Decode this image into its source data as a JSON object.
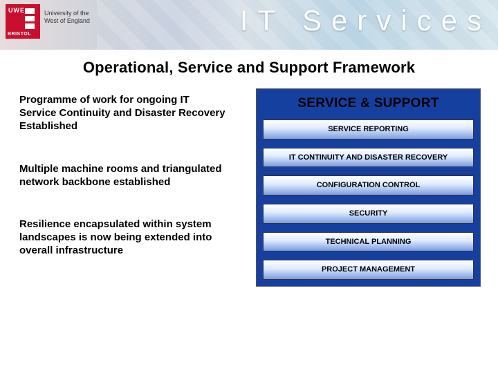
{
  "banner": {
    "logo_uwe": "UWE",
    "logo_bristol": "BRISTOL",
    "university_line1": "University of the",
    "university_line2": "West of England",
    "it_services": "IT Services",
    "colors": {
      "logo_bg": "#c8102e",
      "panel_bg": "#1640a0"
    }
  },
  "title": "Operational, Service and Support Framework",
  "left": {
    "p1": "Programme of work for ongoing IT Service Continuity and Disaster Recovery Established",
    "p2": "Multiple machine rooms and triangulated network backbone established",
    "p3": "Resilience encapsulated within system landscapes is now being extended into overall infrastructure"
  },
  "panel": {
    "title": "SERVICE & SUPPORT",
    "cards": [
      "SERVICE REPORTING",
      "IT CONTINUITY AND DISASTER RECOVERY",
      "CONFIGURATION CONTROL",
      "SECURITY",
      "TECHNICAL PLANNING",
      "PROJECT MANAGEMENT"
    ],
    "card_gradient": {
      "top": "#ffffff",
      "mid": "#e0ecff",
      "bottom": "#7a9de0"
    }
  }
}
